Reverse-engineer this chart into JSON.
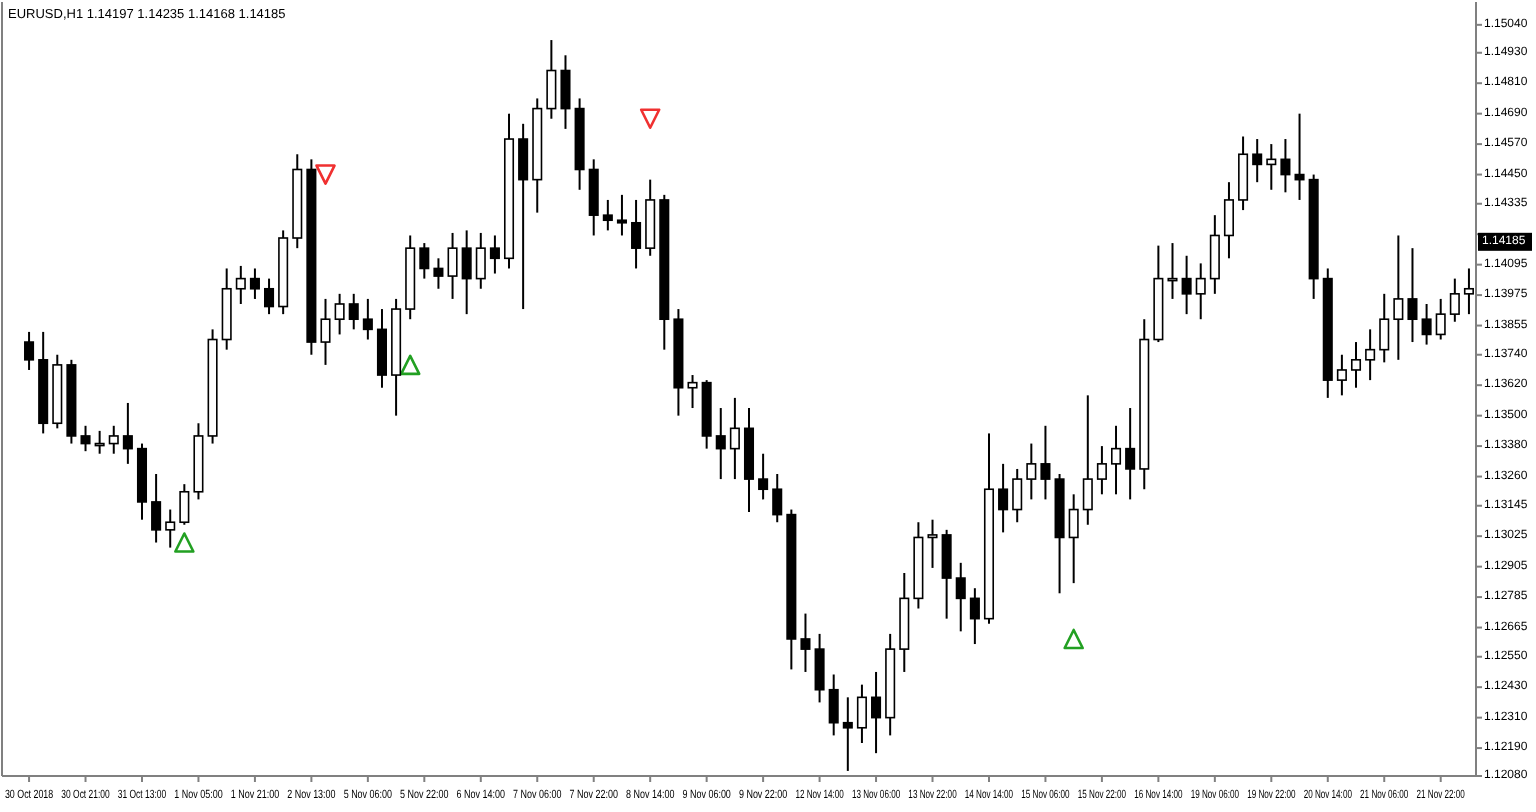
{
  "chart_data": {
    "type": "candlestick",
    "title": "EURUSD,H1 1.14197 1.14235 1.14168 1.14185",
    "color": "#000000",
    "categories": [
      "30 Oct 2018",
      null,
      null,
      null,
      "30 Oct 21:00",
      null,
      null,
      null,
      "31 Oct 13:00",
      null,
      null,
      null,
      "1 Nov 05:00",
      null,
      null,
      null,
      "1 Nov 21:00",
      null,
      null,
      null,
      "2 Nov 13:00",
      null,
      null,
      null,
      "5 Nov 06:00",
      null,
      null,
      null,
      "5 Nov 22:00",
      null,
      null,
      null,
      "6 Nov 14:00",
      null,
      null,
      null,
      "7 Nov 06:00",
      null,
      null,
      null,
      "7 Nov 22:00",
      null,
      null,
      null,
      "8 Nov 14:00",
      null,
      null,
      null,
      "9 Nov 06:00",
      null,
      null,
      null,
      "9 Nov 22:00",
      null,
      null,
      null,
      "12 Nov 14:00",
      null,
      null,
      null,
      "13 Nov 06:00",
      null,
      null,
      null,
      "13 Nov 22:00",
      null,
      null,
      null,
      "14 Nov 14:00",
      null,
      null,
      null,
      "15 Nov 06:00",
      null,
      null,
      null,
      "15 Nov 22:00",
      null,
      null,
      null,
      "16 Nov 14:00",
      null,
      null,
      null,
      "19 Nov 06:00",
      null,
      null,
      null,
      "19 Nov 22:00",
      null,
      null,
      null,
      "20 Nov 14:00",
      null,
      null,
      null,
      "21 Nov 06:00",
      null,
      null,
      null,
      "21 Nov 22:00",
      null,
      null
    ],
    "ohlc": [
      [
        1.1379,
        1.1383,
        1.1368,
        1.1372
      ],
      [
        1.1372,
        1.1383,
        1.1343,
        1.1347
      ],
      [
        1.1347,
        1.1374,
        1.1345,
        1.137
      ],
      [
        1.137,
        1.1372,
        1.1339,
        1.1342
      ],
      [
        1.1342,
        1.1346,
        1.1336,
        1.1339
      ],
      [
        1.1339,
        1.1344,
        1.1335,
        1.1339
      ],
      [
        1.1339,
        1.1346,
        1.1335,
        1.1342
      ],
      [
        1.1342,
        1.1355,
        1.1331,
        1.1337
      ],
      [
        1.1337,
        1.1339,
        1.1309,
        1.1316
      ],
      [
        1.1316,
        1.1327,
        1.13,
        1.1305
      ],
      [
        1.1305,
        1.1313,
        1.1298,
        1.1308
      ],
      [
        1.1308,
        1.1323,
        1.1307,
        1.132
      ],
      [
        1.132,
        1.1347,
        1.1317,
        1.1342
      ],
      [
        1.1342,
        1.1384,
        1.1339,
        1.138
      ],
      [
        1.138,
        1.1408,
        1.1376,
        1.14
      ],
      [
        1.14,
        1.1409,
        1.1394,
        1.1404
      ],
      [
        1.1404,
        1.1408,
        1.1396,
        1.14
      ],
      [
        1.14,
        1.1404,
        1.139,
        1.1393
      ],
      [
        1.1393,
        1.1423,
        1.139,
        1.142
      ],
      [
        1.142,
        1.1453,
        1.1416,
        1.1447
      ],
      [
        1.1447,
        1.1451,
        1.1374,
        1.1379
      ],
      [
        1.1379,
        1.1396,
        1.137,
        1.1388
      ],
      [
        1.1388,
        1.1398,
        1.1382,
        1.1394
      ],
      [
        1.1394,
        1.1398,
        1.1384,
        1.1388
      ],
      [
        1.1388,
        1.1396,
        1.138,
        1.1384
      ],
      [
        1.1384,
        1.1392,
        1.1361,
        1.1366
      ],
      [
        1.1366,
        1.1396,
        1.135,
        1.1392
      ],
      [
        1.1392,
        1.1421,
        1.1388,
        1.1416
      ],
      [
        1.1416,
        1.1418,
        1.1404,
        1.1408
      ],
      [
        1.1408,
        1.1412,
        1.14,
        1.1405
      ],
      [
        1.1405,
        1.1422,
        1.1396,
        1.1416
      ],
      [
        1.1416,
        1.1423,
        1.139,
        1.1404
      ],
      [
        1.1404,
        1.1422,
        1.14,
        1.1416
      ],
      [
        1.1416,
        1.1421,
        1.1406,
        1.1412
      ],
      [
        1.1412,
        1.1469,
        1.1408,
        1.1459
      ],
      [
        1.1459,
        1.1465,
        1.1392,
        1.1443
      ],
      [
        1.1443,
        1.1475,
        1.143,
        1.1471
      ],
      [
        1.1471,
        1.1498,
        1.1467,
        1.1486
      ],
      [
        1.1486,
        1.1492,
        1.1463,
        1.1471
      ],
      [
        1.1471,
        1.1475,
        1.1439,
        1.1447
      ],
      [
        1.1447,
        1.1451,
        1.1421,
        1.1429
      ],
      [
        1.1429,
        1.1435,
        1.1423,
        1.1427
      ],
      [
        1.1427,
        1.1437,
        1.1421,
        1.1426
      ],
      [
        1.1426,
        1.1435,
        1.1408,
        1.1416
      ],
      [
        1.1416,
        1.1443,
        1.1413,
        1.1435
      ],
      [
        1.1435,
        1.1437,
        1.1376,
        1.1388
      ],
      [
        1.1388,
        1.1392,
        1.135,
        1.1361
      ],
      [
        1.1361,
        1.1366,
        1.1353,
        1.1363
      ],
      [
        1.1363,
        1.1364,
        1.1337,
        1.1342
      ],
      [
        1.1342,
        1.1353,
        1.1325,
        1.1337
      ],
      [
        1.1337,
        1.1357,
        1.1325,
        1.1345
      ],
      [
        1.1345,
        1.1353,
        1.1312,
        1.1325
      ],
      [
        1.1325,
        1.1335,
        1.1317,
        1.1321
      ],
      [
        1.1321,
        1.1327,
        1.1308,
        1.1311
      ],
      [
        1.1311,
        1.1313,
        1.125,
        1.1262
      ],
      [
        1.1262,
        1.1272,
        1.1249,
        1.1258
      ],
      [
        1.1258,
        1.1264,
        1.1237,
        1.1242
      ],
      [
        1.1242,
        1.1248,
        1.1224,
        1.1229
      ],
      [
        1.1229,
        1.1239,
        1.121,
        1.1227
      ],
      [
        1.1227,
        1.1244,
        1.1221,
        1.1239
      ],
      [
        1.1239,
        1.1249,
        1.1217,
        1.1231
      ],
      [
        1.1231,
        1.1264,
        1.1224,
        1.1258
      ],
      [
        1.1258,
        1.1288,
        1.1249,
        1.1278
      ],
      [
        1.1278,
        1.1308,
        1.1274,
        1.1302
      ],
      [
        1.1302,
        1.1309,
        1.129,
        1.1303
      ],
      [
        1.1303,
        1.1305,
        1.127,
        1.1286
      ],
      [
        1.1286,
        1.1292,
        1.1265,
        1.1278
      ],
      [
        1.1278,
        1.1282,
        1.126,
        1.127
      ],
      [
        1.127,
        1.1343,
        1.1268,
        1.1321
      ],
      [
        1.1321,
        1.1331,
        1.1304,
        1.1313
      ],
      [
        1.1313,
        1.1329,
        1.1308,
        1.1325
      ],
      [
        1.1325,
        1.1339,
        1.1317,
        1.1331
      ],
      [
        1.1331,
        1.1346,
        1.1317,
        1.1325
      ],
      [
        1.1325,
        1.1327,
        1.128,
        1.1302
      ],
      [
        1.1302,
        1.1319,
        1.1284,
        1.1313
      ],
      [
        1.1313,
        1.1358,
        1.1307,
        1.1325
      ],
      [
        1.1325,
        1.1338,
        1.1319,
        1.1331
      ],
      [
        1.1331,
        1.1346,
        1.1319,
        1.1337
      ],
      [
        1.1337,
        1.1353,
        1.1317,
        1.1329
      ],
      [
        1.1329,
        1.1388,
        1.1321,
        1.138
      ],
      [
        1.138,
        1.1417,
        1.1379,
        1.1404
      ],
      [
        1.1404,
        1.1418,
        1.1396,
        1.1404
      ],
      [
        1.1404,
        1.1413,
        1.139,
        1.1398
      ],
      [
        1.1398,
        1.141,
        1.1388,
        1.1404
      ],
      [
        1.1404,
        1.1429,
        1.1398,
        1.1421
      ],
      [
        1.1421,
        1.1442,
        1.1412,
        1.1435
      ],
      [
        1.1435,
        1.146,
        1.1431,
        1.1453
      ],
      [
        1.1453,
        1.1459,
        1.1442,
        1.1449
      ],
      [
        1.1449,
        1.1457,
        1.1439,
        1.1451
      ],
      [
        1.1451,
        1.1459,
        1.1438,
        1.1445
      ],
      [
        1.1445,
        1.1469,
        1.1435,
        1.1443
      ],
      [
        1.1443,
        1.1445,
        1.1396,
        1.1404
      ],
      [
        1.1404,
        1.1408,
        1.1357,
        1.1364
      ],
      [
        1.1364,
        1.1374,
        1.1358,
        1.1368
      ],
      [
        1.1368,
        1.1379,
        1.1361,
        1.1372
      ],
      [
        1.1372,
        1.1384,
        1.1364,
        1.1376
      ],
      [
        1.1376,
        1.1398,
        1.1371,
        1.1388
      ],
      [
        1.1388,
        1.1421,
        1.1372,
        1.1396
      ],
      [
        1.1396,
        1.1416,
        1.1379,
        1.1388
      ],
      [
        1.1388,
        1.1394,
        1.1378,
        1.1382
      ],
      [
        1.1382,
        1.1396,
        1.138,
        1.139
      ],
      [
        1.139,
        1.1404,
        1.1387,
        1.1398
      ],
      [
        1.1398,
        1.1408,
        1.139,
        1.14
      ]
    ],
    "series": [
      {
        "type": "scatter",
        "color": "#22a022",
        "marker": "triangle",
        "values": [
          null,
          null,
          null,
          null,
          null,
          null,
          null,
          null,
          null,
          null,
          null,
          1.13,
          null,
          null,
          null,
          null,
          null,
          null,
          null,
          null,
          null,
          null,
          null,
          null,
          null,
          null,
          null,
          1.137,
          null,
          null,
          null,
          null,
          null,
          null,
          null,
          null,
          null,
          null,
          null,
          null,
          null,
          null,
          null,
          null,
          null,
          null,
          null,
          null,
          null,
          null,
          null,
          null,
          null,
          null,
          null,
          null,
          null,
          null,
          null,
          null,
          null,
          null,
          null,
          null,
          null,
          null,
          null,
          null,
          null,
          null,
          null,
          null,
          null,
          null,
          1.1262,
          null,
          null,
          null,
          null,
          null,
          null,
          null,
          null,
          null,
          null,
          null,
          null,
          null,
          null,
          null,
          null,
          null,
          null,
          null,
          null,
          null,
          null,
          null,
          null,
          null,
          null,
          null,
          null
        ]
      },
      {
        "type": "scatter",
        "color": "#f03030",
        "marker": "triangle",
        "values": [
          null,
          null,
          null,
          null,
          null,
          null,
          null,
          null,
          null,
          null,
          null,
          null,
          null,
          null,
          null,
          null,
          null,
          null,
          null,
          null,
          null,
          1.1445,
          null,
          null,
          null,
          null,
          null,
          null,
          null,
          null,
          null,
          null,
          null,
          null,
          null,
          null,
          null,
          null,
          null,
          null,
          null,
          null,
          null,
          null,
          1.1467,
          null,
          null,
          null,
          null,
          null,
          null,
          null,
          null,
          null,
          null,
          null,
          null,
          null,
          null,
          null,
          null,
          null,
          null,
          null,
          null,
          null,
          null,
          null,
          null,
          null,
          null,
          null,
          null,
          null,
          null,
          null,
          null,
          null,
          null,
          null,
          null,
          null,
          null,
          null,
          null,
          null,
          null,
          null,
          null,
          null,
          null,
          null,
          null,
          null,
          null,
          null,
          null,
          null,
          null,
          null,
          null,
          null,
          null
        ]
      }
    ],
    "ylim": [
      1.1208,
      1.1513
    ],
    "yticks": [
      {
        "value": 1.1504,
        "label": "1.15040"
      },
      {
        "value": 1.1493,
        "label": "1.14930"
      },
      {
        "value": 1.1481,
        "label": "1.14810"
      },
      {
        "value": 1.1469,
        "label": "1.14690"
      },
      {
        "value": 1.1457,
        "label": "1.14570"
      },
      {
        "value": 1.1445,
        "label": "1.14450"
      },
      {
        "value": 1.14335,
        "label": "1.14335"
      },
      {
        "value": 1.14215,
        "label": null
      },
      {
        "value": 1.14095,
        "label": "1.14095"
      },
      {
        "value": 1.13975,
        "label": "1.13975"
      },
      {
        "value": 1.13855,
        "label": "1.13855"
      },
      {
        "value": 1.1374,
        "label": "1.13740"
      },
      {
        "value": 1.1362,
        "label": "1.13620"
      },
      {
        "value": 1.135,
        "label": "1.13500"
      },
      {
        "value": 1.1338,
        "label": "1.13380"
      },
      {
        "value": 1.1326,
        "label": "1.13260"
      },
      {
        "value": 1.13145,
        "label": "1.13145"
      },
      {
        "value": 1.13025,
        "label": "1.13025"
      },
      {
        "value": 1.12905,
        "label": "1.12905"
      },
      {
        "value": 1.12785,
        "label": "1.12785"
      },
      {
        "value": 1.12665,
        "label": "1.12665"
      },
      {
        "value": 1.1255,
        "label": "1.12550"
      },
      {
        "value": 1.1243,
        "label": "1.12430"
      },
      {
        "value": 1.1231,
        "label": "1.12310"
      },
      {
        "value": 1.1219,
        "label": "1.12190"
      },
      {
        "value": 1.1208,
        "label": "1.12080"
      }
    ],
    "annotations": [
      {
        "text": "1.14185",
        "y": 1.14185
      }
    ]
  }
}
